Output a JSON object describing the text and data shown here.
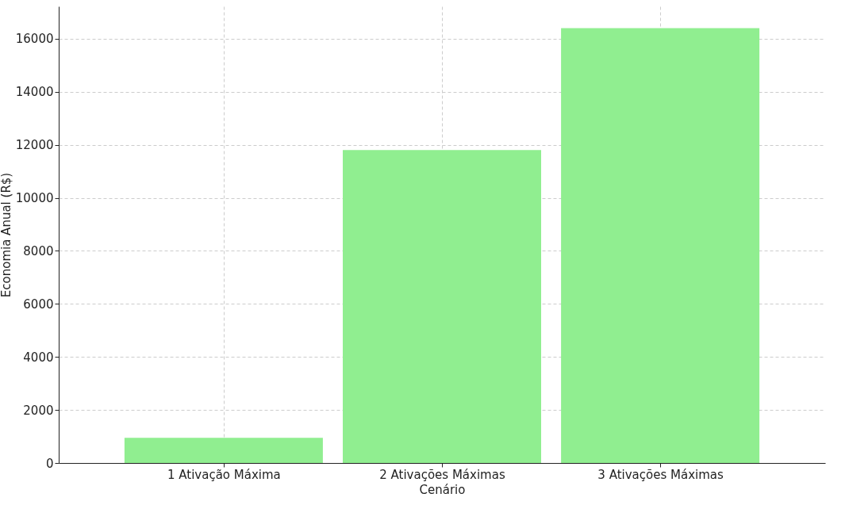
{
  "chart_data": {
    "type": "bar",
    "xlabel": "Cenário",
    "ylabel": "Economia Anual (R$)",
    "categories": [
      "1 Ativação Máxima",
      "2 Ativações Máximas",
      "3 Ativações Máximas"
    ],
    "values": [
      950,
      11800,
      16400
    ],
    "color": "#90ee90",
    "ylim": [
      0,
      17220
    ],
    "yticks": [
      0,
      2000,
      4000,
      6000,
      8000,
      10000,
      12000,
      14000,
      16000
    ],
    "grid": true
  }
}
